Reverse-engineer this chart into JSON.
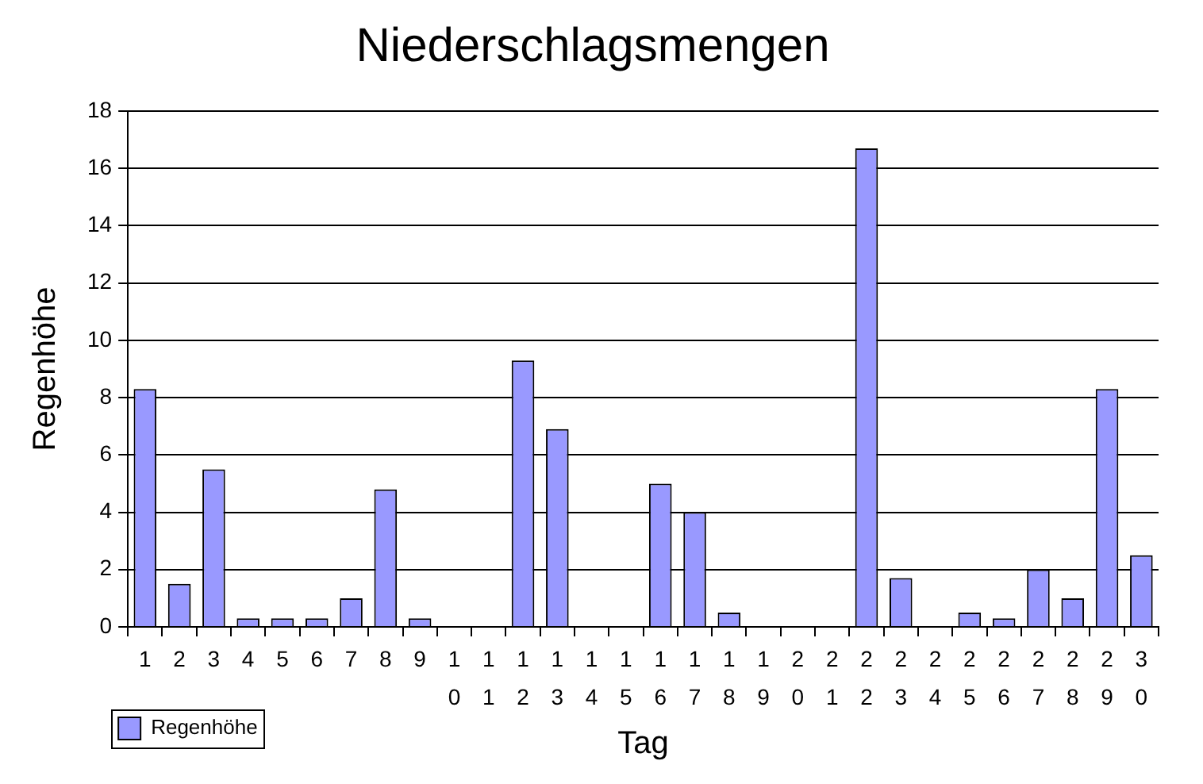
{
  "chart_data": {
    "type": "bar",
    "title": "Niederschlagsmengen",
    "xlabel": "Tag",
    "ylabel": "Regenhöhe",
    "categories": [
      "1",
      "2",
      "3",
      "4",
      "5",
      "6",
      "7",
      "8",
      "9",
      "10",
      "11",
      "12",
      "13",
      "14",
      "15",
      "16",
      "17",
      "18",
      "19",
      "20",
      "21",
      "22",
      "23",
      "24",
      "25",
      "26",
      "27",
      "28",
      "29",
      "30"
    ],
    "series": [
      {
        "name": "Regenhöhe",
        "color": "#9999ff",
        "values": [
          8.3,
          1.5,
          5.5,
          0.3,
          0.3,
          0.3,
          1.0,
          4.8,
          0.3,
          0,
          0,
          9.3,
          6.9,
          0,
          0,
          5.0,
          4.0,
          0.5,
          0,
          0,
          0,
          16.7,
          1.7,
          0,
          0.5,
          0.3,
          2.0,
          1.0,
          8.3,
          2.5
        ]
      }
    ],
    "ylim": [
      0,
      18
    ],
    "yticks": [
      0,
      2,
      4,
      6,
      8,
      10,
      12,
      14,
      16,
      18
    ],
    "grid": "y",
    "legend": "bottom left"
  }
}
